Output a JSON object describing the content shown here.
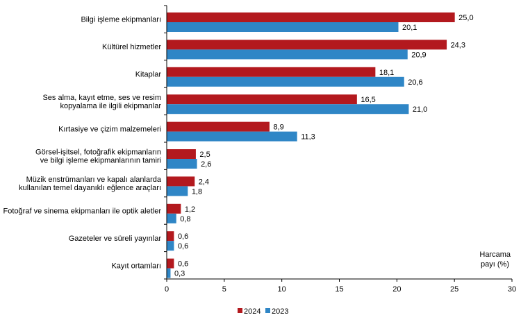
{
  "chart_data": {
    "type": "bar",
    "orientation": "horizontal",
    "categories": [
      [
        "Bilgi işleme ekipmanları"
      ],
      [
        "Kültürel hizmetler"
      ],
      [
        "Kitaplar"
      ],
      [
        "Ses alma, kayıt etme, ses ve resim",
        "kopyalama ile ilgili ekipmanlar"
      ],
      [
        "Kırtasiye ve çizim malzemeleri"
      ],
      [
        "Görsel-işitsel, fotoğrafik ekipmanların",
        "ve bilgi işleme ekipmanlarının tamiri"
      ],
      [
        "Müzik enstrümanları ve kapalı alanlarda",
        "kullanılan temel dayanıklı eğlence araçları"
      ],
      [
        "Fotoğraf ve sinema ekipmanları ile optik aletler"
      ],
      [
        "Gazeteler ve süreli yayınlar"
      ],
      [
        "Kayıt ortamları"
      ]
    ],
    "series": [
      {
        "name": "2024",
        "color": "#b3191e",
        "values": [
          25.0,
          24.3,
          18.1,
          16.5,
          8.9,
          2.5,
          2.4,
          1.2,
          0.6,
          0.6
        ],
        "labels": [
          "25,0",
          "24,3",
          "18,1",
          "16,5",
          "8,9",
          "2,5",
          "2,4",
          "1,2",
          "0,6",
          "0,6"
        ]
      },
      {
        "name": "2023",
        "color": "#2f86c6",
        "values": [
          20.1,
          20.9,
          20.6,
          21.0,
          11.3,
          2.6,
          1.8,
          0.8,
          0.6,
          0.3
        ],
        "labels": [
          "20,1",
          "20,9",
          "20,6",
          "21,0",
          "11,3",
          "2,6",
          "1,8",
          "0,8",
          "0,6",
          "0,3"
        ]
      }
    ],
    "xlabel": [
      "Harcama",
      "payı (%)"
    ],
    "xlim": [
      0,
      30
    ],
    "xticks": [
      0,
      5,
      10,
      15,
      20,
      25,
      30
    ],
    "grid": false,
    "legend": "bottom"
  }
}
